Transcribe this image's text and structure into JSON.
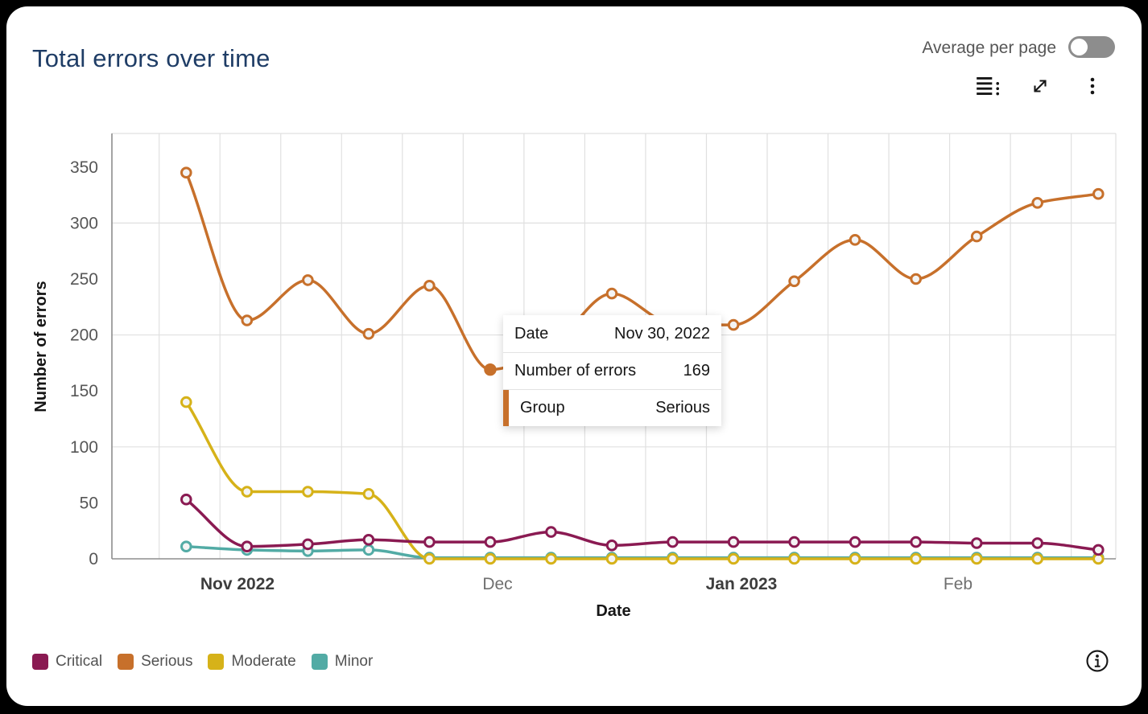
{
  "header": {
    "title": "Total errors over time",
    "toggle": {
      "label": "Average per page",
      "state": "off"
    },
    "icons": [
      "show-data-icon",
      "maximize-icon",
      "overflow-menu-icon"
    ]
  },
  "chart_data": {
    "type": "line",
    "title": "Total errors over time",
    "xlabel": "Date",
    "ylabel": "Number of errors",
    "ylim": [
      0,
      380
    ],
    "yticks": [
      0,
      50,
      100,
      150,
      200,
      250,
      300,
      350
    ],
    "xticks": [
      {
        "label": "Nov 2022",
        "emphasis": true
      },
      {
        "label": "Dec",
        "emphasis": false
      },
      {
        "label": "Jan 2023",
        "emphasis": true
      },
      {
        "label": "Feb",
        "emphasis": false
      }
    ],
    "grid": true,
    "legend_position": "bottom",
    "point_count": 16,
    "series": [
      {
        "name": "Minor",
        "color": "#52aba5",
        "values": [
          11,
          8,
          7,
          8,
          1,
          1,
          1,
          1,
          1,
          1,
          1,
          1,
          1,
          1,
          1,
          1
        ]
      },
      {
        "name": "Moderate",
        "color": "#d6b219",
        "values": [
          140,
          60,
          60,
          58,
          0,
          0,
          0,
          0,
          0,
          0,
          0,
          0,
          0,
          0,
          0,
          0
        ]
      },
      {
        "name": "Critical",
        "color": "#8a1a52",
        "values": [
          53,
          11,
          13,
          17,
          15,
          15,
          24,
          12,
          15,
          15,
          15,
          15,
          15,
          14,
          14,
          8
        ]
      },
      {
        "name": "Serious",
        "color": "#c7702b",
        "values": [
          345,
          213,
          249,
          201,
          244,
          169,
          190,
          237,
          210,
          209,
          248,
          285,
          250,
          288,
          318,
          326
        ]
      }
    ],
    "legend_order": [
      "Critical",
      "Serious",
      "Moderate",
      "Minor"
    ]
  },
  "tooltip": {
    "rows": [
      {
        "label": "Date",
        "value": "Nov 30, 2022",
        "accent": false
      },
      {
        "label": "Number of errors",
        "value": "169",
        "accent": false
      },
      {
        "label": "Group",
        "value": "Serious",
        "accent": true
      }
    ],
    "point": {
      "series": "Serious",
      "index": 5,
      "value": 169
    }
  }
}
